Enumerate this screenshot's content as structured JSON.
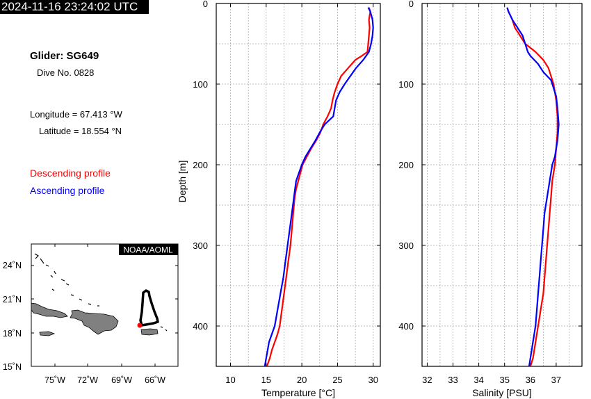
{
  "header": {
    "timestamp": "2024-11-16 23:24:02 UTC"
  },
  "info": {
    "glider": "Glider: SG649",
    "dive": "Dive No. 0828",
    "longitude": "Longitude = 67.413 °W",
    "latitude": "Latitude = 18.554 °N"
  },
  "legend": {
    "descending": {
      "label": "Descending profile",
      "color": "#ff0000"
    },
    "ascending": {
      "label": "Ascending profile",
      "color": "#0000ff"
    }
  },
  "map": {
    "badge": "NOAA/AOML",
    "lat_ticks": [
      "24˚N",
      "21˚N",
      "18˚N",
      "15˚N"
    ],
    "lon_ticks": [
      "75˚W",
      "72˚W",
      "69˚W",
      "66˚W"
    ],
    "land_color": "#808080"
  },
  "chart_data": [
    {
      "type": "line",
      "xlabel": "Temperature [°C]",
      "ylabel": "Depth [m]",
      "xlim": [
        8,
        31
      ],
      "ylim": [
        450,
        0
      ],
      "xticks": [
        "10",
        "15",
        "20",
        "25",
        "30"
      ],
      "yticks": [
        "0",
        "100",
        "200",
        "300",
        "400"
      ],
      "grid": true,
      "series": [
        {
          "name": "Descending profile",
          "color": "#ff0000",
          "x": [
            29.4,
            29.6,
            29.4,
            29.5,
            29.4,
            29.3,
            29.2,
            28.4,
            27.5,
            26.5,
            25.5,
            25.0,
            24.6,
            24.3,
            24.1,
            23.6,
            23.0,
            22.6,
            22.0,
            21.3,
            20.7,
            20.1,
            19.8,
            19.5,
            19.2,
            19.0,
            18.9,
            18.8,
            18.7,
            18.6,
            18.4,
            18.1,
            17.8,
            17.5,
            17.2,
            16.9,
            16.6,
            16.2,
            15.8,
            15.5,
            15.3,
            15.1
          ],
          "y": [
            5,
            10,
            20,
            30,
            40,
            50,
            60,
            65,
            70,
            80,
            90,
            100,
            110,
            120,
            130,
            140,
            150,
            160,
            170,
            180,
            190,
            200,
            210,
            220,
            230,
            240,
            250,
            260,
            270,
            280,
            300,
            320,
            340,
            360,
            380,
            400,
            410,
            420,
            430,
            440,
            445,
            450
          ]
        },
        {
          "name": "Ascending profile",
          "color": "#0000ff",
          "x": [
            29.3,
            29.6,
            29.9,
            30.0,
            29.9,
            29.7,
            29.4,
            28.6,
            27.6,
            26.8,
            26.0,
            25.3,
            24.8,
            24.6,
            24.4,
            23.2,
            22.5,
            21.9,
            21.2,
            20.5,
            20.0,
            19.6,
            19.2,
            18.9,
            18.6,
            18.3,
            18.0,
            17.7,
            17.4,
            17.0,
            16.6,
            16.2,
            15.8,
            15.4,
            15.2,
            15.0,
            14.8
          ],
          "y": [
            5,
            10,
            20,
            30,
            40,
            50,
            60,
            70,
            80,
            90,
            100,
            110,
            120,
            130,
            140,
            150,
            160,
            170,
            180,
            190,
            200,
            210,
            220,
            240,
            260,
            280,
            300,
            320,
            340,
            360,
            380,
            400,
            410,
            420,
            430,
            440,
            450
          ]
        }
      ]
    },
    {
      "type": "line",
      "xlabel": "Salinity [PSU]",
      "xlim": [
        31.8,
        38
      ],
      "ylim": [
        450,
        0
      ],
      "xticks": [
        "32",
        "33",
        "34",
        "35",
        "36",
        "37"
      ],
      "yticks": [
        "0",
        "100",
        "200",
        "300",
        "400"
      ],
      "grid": true,
      "series": [
        {
          "name": "Descending profile",
          "color": "#ff0000",
          "x": [
            35.1,
            35.15,
            35.3,
            35.4,
            35.6,
            35.8,
            36.2,
            36.5,
            36.7,
            36.8,
            36.9,
            36.95,
            37.0,
            37.05,
            37.05,
            37.0,
            36.95,
            36.9,
            36.85,
            36.8,
            36.75,
            36.7,
            36.65,
            36.6,
            36.55,
            36.5,
            36.45,
            36.4,
            36.35,
            36.3,
            36.25,
            36.2,
            36.15,
            36.1,
            36.05,
            36.0
          ],
          "y": [
            5,
            10,
            20,
            30,
            40,
            50,
            60,
            70,
            80,
            90,
            100,
            110,
            120,
            140,
            160,
            180,
            200,
            210,
            220,
            240,
            260,
            280,
            300,
            320,
            340,
            360,
            370,
            380,
            390,
            400,
            410,
            420,
            430,
            440,
            445,
            450
          ]
        },
        {
          "name": "Ascending profile",
          "color": "#0000ff",
          "x": [
            35.1,
            35.15,
            35.3,
            35.5,
            35.7,
            35.8,
            35.9,
            36.0,
            36.3,
            36.5,
            36.8,
            36.9,
            37.0,
            37.05,
            37.1,
            37.05,
            36.95,
            36.85,
            36.75,
            36.65,
            36.55,
            36.5,
            36.45,
            36.4,
            36.35,
            36.3,
            36.25,
            36.2,
            36.15,
            36.1,
            36.05,
            36.0,
            35.95
          ],
          "y": [
            5,
            10,
            20,
            30,
            40,
            50,
            60,
            65,
            75,
            85,
            95,
            105,
            115,
            130,
            150,
            170,
            190,
            200,
            220,
            240,
            260,
            280,
            300,
            320,
            340,
            360,
            380,
            400,
            410,
            420,
            430,
            440,
            450
          ]
        }
      ]
    }
  ]
}
